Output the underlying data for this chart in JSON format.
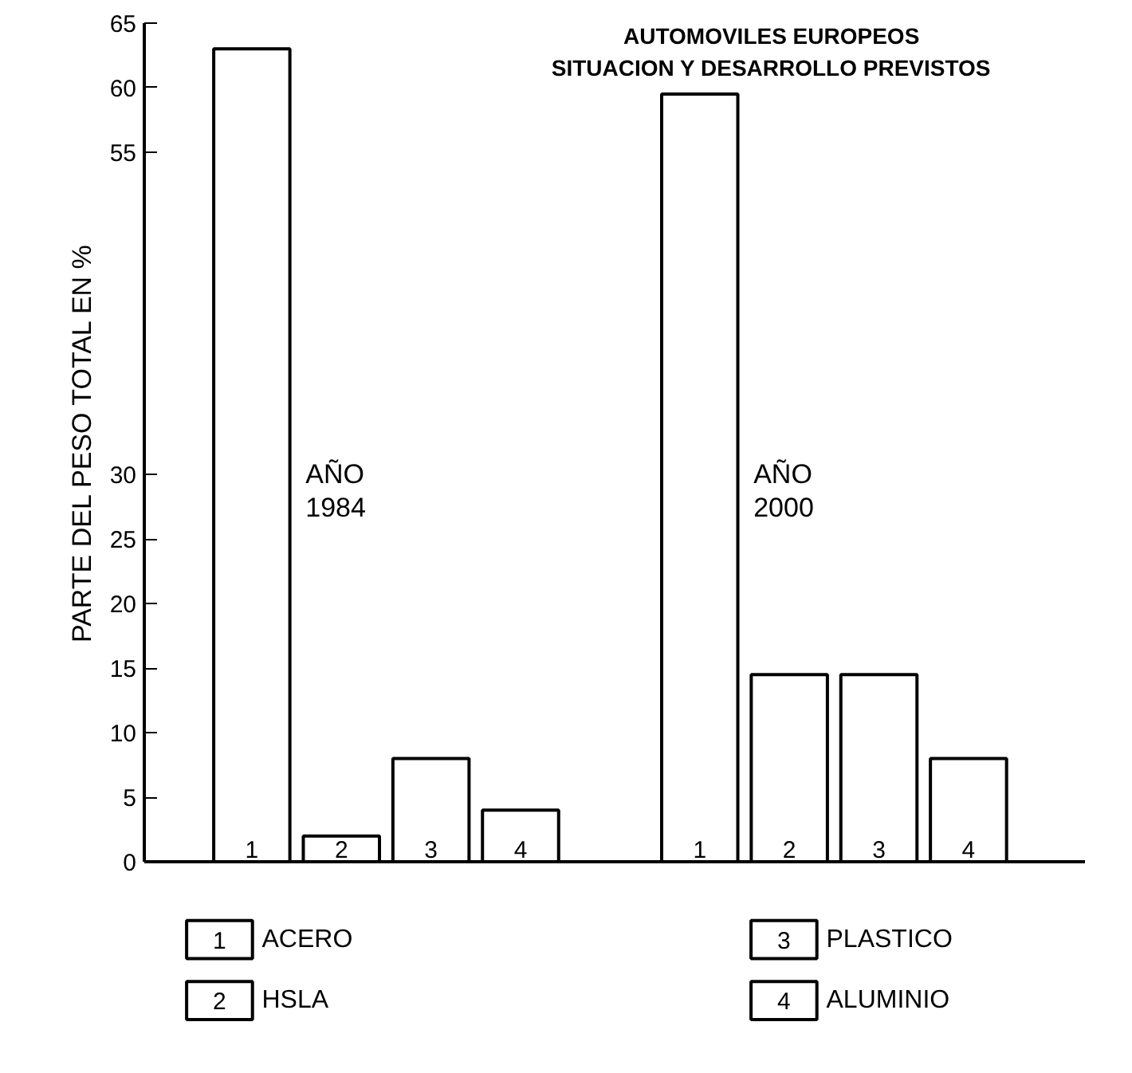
{
  "chart_data": {
    "type": "bar",
    "title": "AUTOMOVILES EUROPEOS",
    "subtitle": "SITUACION Y DESARROLLO PREVISTOS",
    "ylabel": "PARTE DEL PESO TOTAL EN %",
    "categories": [
      "1",
      "2",
      "3",
      "4",
      "1",
      "2",
      "3",
      "4"
    ],
    "series": [
      {
        "name": "ACERO",
        "color": "#ffffff",
        "values": [
          63,
          null,
          null,
          null,
          59.5,
          null,
          null,
          null
        ]
      },
      {
        "name": "HSLA",
        "color": "#ffffff",
        "values": [
          null,
          2,
          null,
          null,
          null,
          14.5,
          null,
          null
        ]
      },
      {
        "name": "PLASTICO",
        "color": "#ffffff",
        "values": [
          null,
          null,
          8,
          null,
          null,
          null,
          14.5,
          null
        ]
      },
      {
        "name": "ALUMINIO",
        "color": "#ffffff",
        "values": [
          null,
          null,
          null,
          4,
          null,
          null,
          null,
          8
        ]
      }
    ],
    "annotations": [
      "AÑO\n1984",
      "AÑO\n2000"
    ],
    "ylim": [
      0,
      65
    ],
    "yticks": [
      0,
      5,
      10,
      15,
      20,
      25,
      30,
      55,
      60,
      65
    ],
    "tick_labels": "y",
    "grid": false,
    "legend": "bottom"
  }
}
